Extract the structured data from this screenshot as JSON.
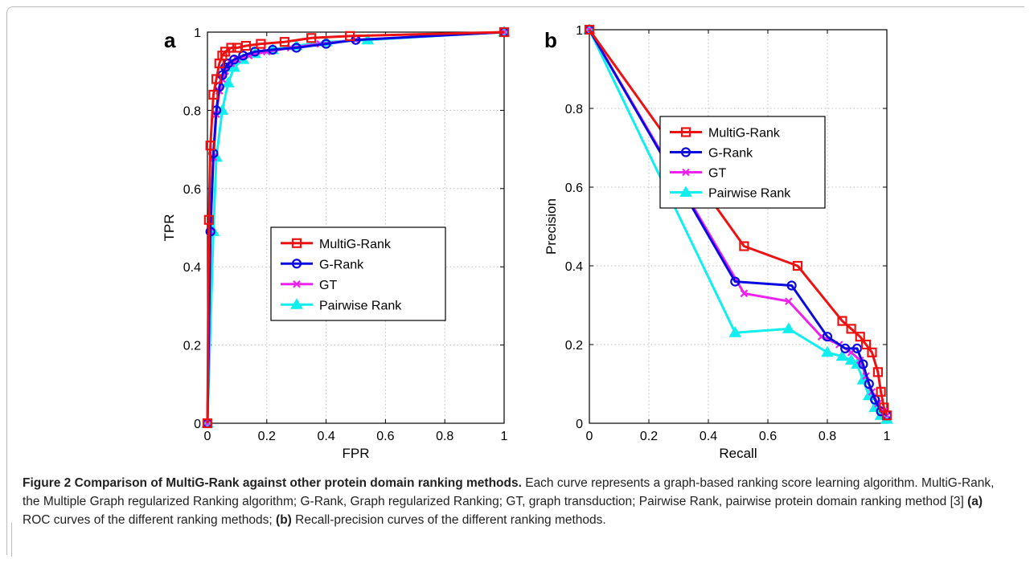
{
  "caption": {
    "title": "Figure 2 Comparison of MultiG-Rank against other protein domain ranking methods.",
    "text1": " Each curve represents a graph-based ranking score learning algorithm. MultiG-Rank, the Multiple Graph regularized Ranking algorithm; G-Rank, Graph regularized Ranking; GT, graph transduction; Pairwise Rank, pairwise protein domain ranking method [3] ",
    "label_a": "(a)",
    "text2": " ROC curves of the different ranking methods; ",
    "label_b": "(b)",
    "text3": " Recall-precision curves of the different ranking methods."
  },
  "chart_data": [
    {
      "panel_label": "a",
      "type": "line",
      "xlabel": "FPR",
      "ylabel": "TPR",
      "xlim": [
        0,
        1
      ],
      "ylim": [
        0,
        1
      ],
      "xticks": [
        "0",
        "0.2",
        "0.4",
        "0.6",
        "0.8",
        "1"
      ],
      "yticks": [
        "0",
        "0.2",
        "0.4",
        "0.6",
        "0.8",
        "1"
      ],
      "grid": true,
      "legend": "center-right",
      "series": [
        {
          "name": "MultiG-Rank",
          "color": "#ee1111",
          "marker": "square",
          "x": [
            0,
            0.005,
            0.01,
            0.02,
            0.03,
            0.04,
            0.05,
            0.06,
            0.08,
            0.1,
            0.13,
            0.18,
            0.26,
            0.35,
            0.48,
            1.0
          ],
          "y": [
            0,
            0.52,
            0.71,
            0.84,
            0.88,
            0.92,
            0.94,
            0.95,
            0.96,
            0.96,
            0.965,
            0.97,
            0.975,
            0.985,
            0.99,
            1.0
          ]
        },
        {
          "name": "G-Rank",
          "color": "#0a0ae0",
          "marker": "circle",
          "x": [
            0,
            0.01,
            0.02,
            0.03,
            0.04,
            0.05,
            0.06,
            0.07,
            0.09,
            0.12,
            0.16,
            0.22,
            0.3,
            0.4,
            0.5,
            1.0
          ],
          "y": [
            0,
            0.49,
            0.69,
            0.8,
            0.86,
            0.89,
            0.91,
            0.92,
            0.93,
            0.94,
            0.95,
            0.955,
            0.96,
            0.97,
            0.98,
            1.0
          ]
        },
        {
          "name": "GT",
          "color": "#ee22ee",
          "marker": "x",
          "x": [
            0,
            0.01,
            0.02,
            0.03,
            0.04,
            0.05,
            0.06,
            0.08,
            0.1,
            0.14,
            0.2,
            0.28,
            0.38,
            0.5,
            1.0
          ],
          "y": [
            0,
            0.49,
            0.68,
            0.79,
            0.85,
            0.88,
            0.9,
            0.92,
            0.93,
            0.94,
            0.95,
            0.96,
            0.97,
            0.98,
            1.0
          ]
        },
        {
          "name": "Pairwise Rank",
          "color": "#11eeee",
          "marker": "triangle",
          "x": [
            0,
            0.02,
            0.03,
            0.05,
            0.07,
            0.09,
            0.12,
            0.16,
            0.22,
            0.3,
            0.4,
            0.54,
            1.0
          ],
          "y": [
            0,
            0.49,
            0.68,
            0.8,
            0.87,
            0.91,
            0.93,
            0.945,
            0.955,
            0.965,
            0.975,
            0.98,
            1.0
          ]
        }
      ]
    },
    {
      "panel_label": "b",
      "type": "line",
      "xlabel": "Recall",
      "ylabel": "Precision",
      "xlim": [
        0,
        1
      ],
      "ylim": [
        0,
        1
      ],
      "xticks": [
        "0",
        "0.2",
        "0.4",
        "0.6",
        "0.8",
        "1"
      ],
      "yticks": [
        "0",
        "0.2",
        "0.4",
        "0.6",
        "0.8",
        "1"
      ],
      "grid": true,
      "legend": "upper-right",
      "series": [
        {
          "name": "MultiG-Rank",
          "color": "#ee1111",
          "marker": "square",
          "x": [
            0,
            0.52,
            0.7,
            0.85,
            0.88,
            0.91,
            0.93,
            0.95,
            0.97,
            0.98,
            0.99,
            1.0
          ],
          "y": [
            1.0,
            0.45,
            0.4,
            0.26,
            0.24,
            0.22,
            0.2,
            0.18,
            0.13,
            0.08,
            0.04,
            0.02
          ]
        },
        {
          "name": "G-Rank",
          "color": "#0a0ae0",
          "marker": "circle",
          "x": [
            0,
            0.49,
            0.68,
            0.8,
            0.86,
            0.9,
            0.92,
            0.94,
            0.96,
            0.98,
            1.0
          ],
          "y": [
            1.0,
            0.36,
            0.35,
            0.22,
            0.19,
            0.19,
            0.15,
            0.1,
            0.06,
            0.03,
            0.02
          ]
        },
        {
          "name": "GT",
          "color": "#ee22ee",
          "marker": "x",
          "x": [
            0,
            0.52,
            0.67,
            0.78,
            0.84,
            0.88,
            0.91,
            0.93,
            0.95,
            0.97,
            0.99,
            1.0
          ],
          "y": [
            1.0,
            0.33,
            0.31,
            0.22,
            0.2,
            0.18,
            0.16,
            0.12,
            0.08,
            0.05,
            0.03,
            0.02
          ]
        },
        {
          "name": "Pairwise Rank",
          "color": "#11eeee",
          "marker": "triangle",
          "x": [
            0,
            0.49,
            0.67,
            0.8,
            0.85,
            0.88,
            0.9,
            0.92,
            0.94,
            0.96,
            0.98,
            1.0
          ],
          "y": [
            1.0,
            0.23,
            0.24,
            0.18,
            0.17,
            0.16,
            0.15,
            0.11,
            0.07,
            0.04,
            0.02,
            0.01
          ]
        }
      ]
    }
  ]
}
